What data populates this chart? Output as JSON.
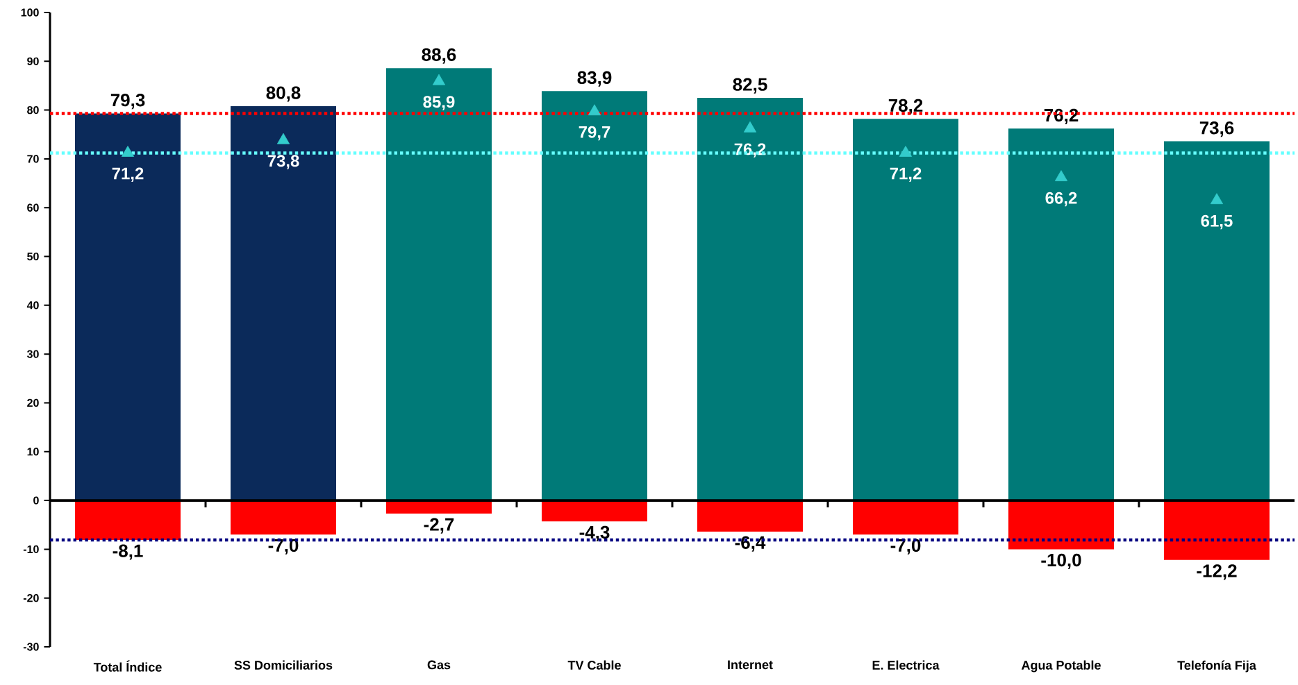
{
  "chart_data": {
    "type": "bar",
    "stacked": true,
    "categories": [
      "Total Índice",
      "SS Domiciliarios",
      "Gas",
      "TV Cable",
      "Internet",
      "E. Electrica",
      "Agua Potable",
      "Telefonía Fija"
    ],
    "series": [
      {
        "colors": [
          "#0b2a5a",
          "#0b2a5a",
          "#007a78",
          "#007a78",
          "#007a78",
          "#007a78",
          "#007a78",
          "#007a78"
        ],
        "values": [
          79.3,
          80.8,
          88.6,
          83.9,
          82.5,
          78.2,
          76.2,
          73.6
        ],
        "value_labels": [
          "79,3",
          "80,8",
          "88,6",
          "83,9",
          "82,5",
          "78,2",
          "76,2",
          "73,6"
        ]
      },
      {
        "color": "#ff0000",
        "values": [
          -8.1,
          -7.0,
          -2.7,
          -4.3,
          -6.4,
          -7.0,
          -10.0,
          -12.2
        ],
        "value_labels": [
          "-8,1",
          "-7,0",
          "-2,7",
          "-4,3",
          "-6,4",
          "-7,0",
          "-10,0",
          "-12,2"
        ]
      },
      {
        "type": "scatter",
        "color": "#33cccc",
        "marker": "triangle",
        "values": [
          71.2,
          73.8,
          85.9,
          79.7,
          76.2,
          71.2,
          66.2,
          61.5
        ],
        "value_labels": [
          "71,2",
          "73,8",
          "85,9",
          "79,7",
          "76,2",
          "71,2",
          "66,2",
          "61,5"
        ]
      }
    ],
    "ref_lines": [
      {
        "axis": "y",
        "value": 79.3,
        "color": "#ff0000",
        "line_style": "dotted"
      },
      {
        "axis": "y",
        "value": 71.2,
        "color": "#66ffff",
        "line_style": "dotted"
      },
      {
        "axis": "y",
        "value": -8.1,
        "color": "#000080",
        "line_style": "dotted"
      }
    ],
    "ylim": [
      -30,
      100
    ],
    "yticks": [
      -30,
      -20,
      -10,
      0,
      10,
      20,
      30,
      40,
      50,
      60,
      70,
      80,
      90,
      100
    ]
  }
}
